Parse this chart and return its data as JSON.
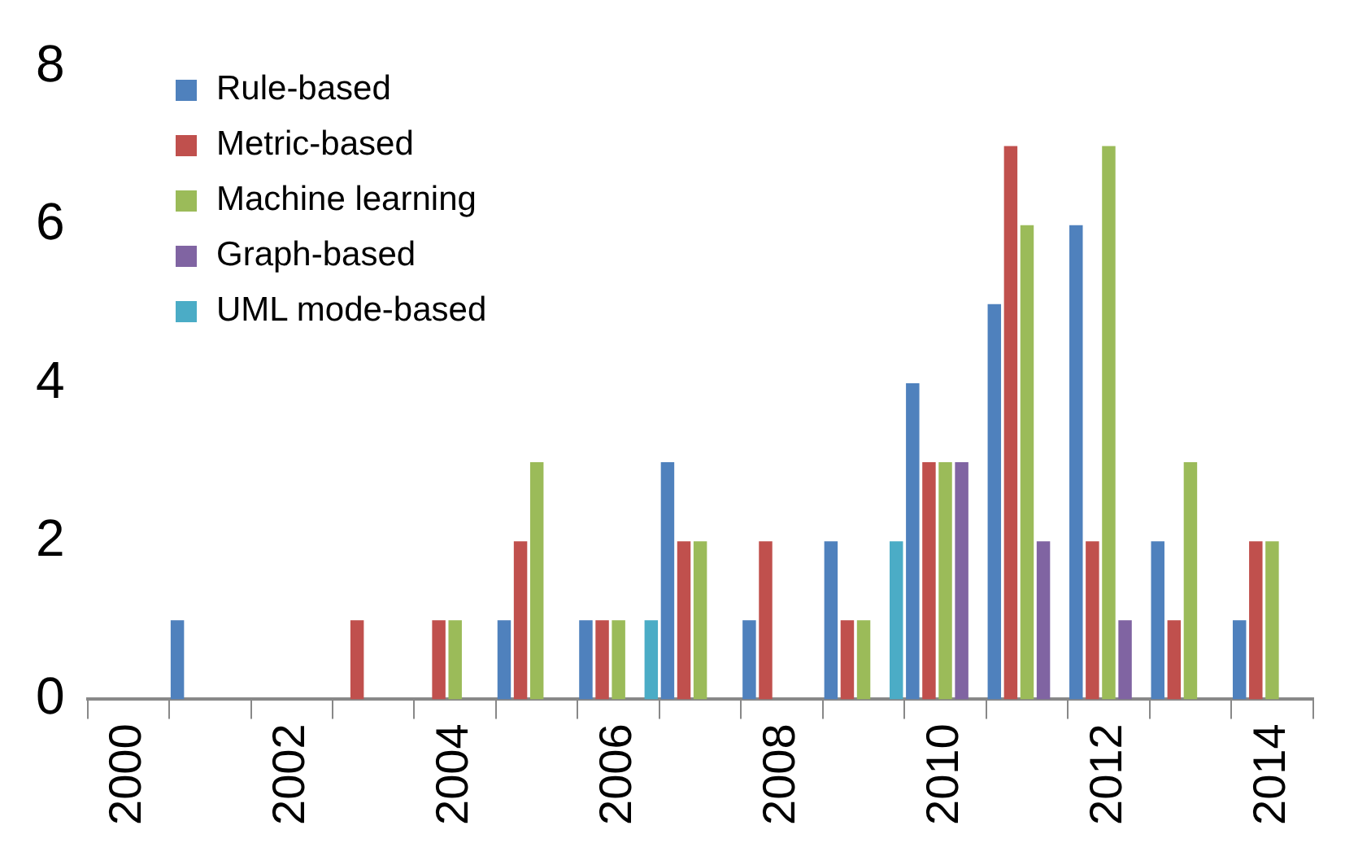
{
  "chart_data": {
    "type": "bar",
    "categories": [
      "2000",
      null,
      "2002",
      null,
      "2004",
      null,
      "2006",
      null,
      "2008",
      null,
      "2010",
      null,
      "2012",
      null,
      "2014"
    ],
    "series": [
      {
        "name": "Rule-based",
        "color": "#4f81bd",
        "values": [
          0,
          1,
          0,
          0,
          0,
          1,
          1,
          3,
          1,
          2,
          4,
          5,
          6,
          2,
          1
        ]
      },
      {
        "name": "Metric-based",
        "color": "#c0504d",
        "values": [
          0,
          0,
          0,
          1,
          1,
          2,
          1,
          2,
          2,
          1,
          3,
          7,
          2,
          1,
          2
        ]
      },
      {
        "name": "Machine learning",
        "color": "#9bbb59",
        "values": [
          0,
          0,
          0,
          0,
          1,
          3,
          1,
          2,
          0,
          1,
          3,
          6,
          7,
          3,
          2
        ]
      },
      {
        "name": "Graph-based",
        "color": "#8064a2",
        "values": [
          0,
          0,
          0,
          0,
          0,
          0,
          0,
          0,
          0,
          0,
          3,
          2,
          1,
          0,
          0
        ]
      },
      {
        "name": "UML mode-based",
        "color": "#4bacc6",
        "values": [
          0,
          0,
          0,
          0,
          0,
          0,
          1,
          0,
          0,
          2,
          0,
          0,
          0,
          0,
          0
        ]
      }
    ],
    "ylim": [
      0,
      8
    ],
    "yticks": [
      0,
      2,
      4,
      6,
      8
    ],
    "grid": false,
    "legend": "top left"
  }
}
